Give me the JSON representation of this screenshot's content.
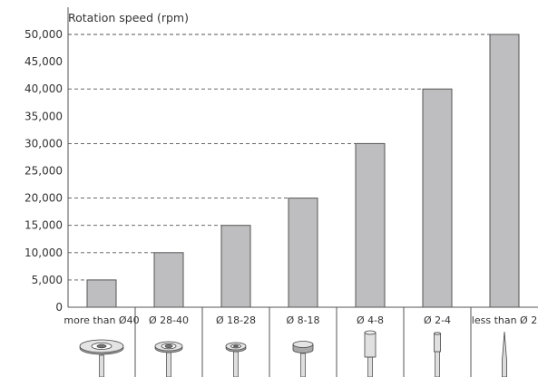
{
  "chart_data": {
    "type": "bar",
    "ylabel": "Rotation speed (rpm)",
    "categories": [
      "more than Ø40",
      "Ø 28-40",
      "Ø 18-28",
      "Ø 8-18",
      "Ø 4-8",
      "Ø 2-4",
      "less than Ø 2"
    ],
    "values": [
      5000,
      10000,
      15000,
      20000,
      30000,
      40000,
      50000
    ],
    "ylim": [
      0,
      50000
    ],
    "yticks": [
      "0",
      "5,000",
      "10,000",
      "15,000",
      "20,000",
      "25,000",
      "30,000",
      "35,000",
      "40,000",
      "45,000",
      "50,000"
    ],
    "tool_icons": [
      "large-disc-tool-icon",
      "medium-disc-tool-icon",
      "small-disc-tool-icon",
      "cylinder-head-tool-icon",
      "cylinder-bit-tool-icon",
      "thin-cylinder-bit-tool-icon",
      "pointed-bit-tool-icon"
    ],
    "colors": {
      "bar_fill": "#bebec0",
      "bar_stroke": "#555555",
      "grid": "#555555",
      "text": "#333333"
    }
  }
}
